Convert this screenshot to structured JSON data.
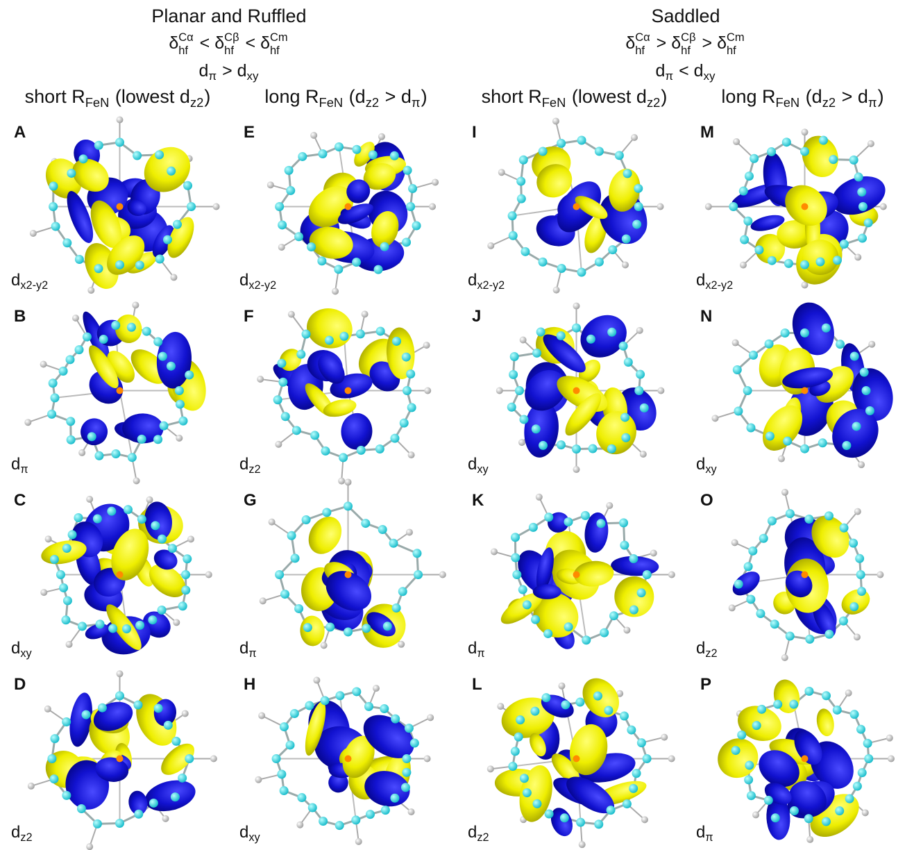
{
  "groups": [
    {
      "title": "Planar and Ruffled",
      "shift_order": [
        {
          "base": "δ",
          "sub": "hf",
          "sup": "Cα"
        },
        " < ",
        {
          "base": "δ",
          "sub": "hf",
          "sup": "Cβ"
        },
        " < ",
        {
          "base": "δ",
          "sub": "hf",
          "sup": "Cm"
        }
      ],
      "orbital_order": [
        {
          "base": "d",
          "sub": "π"
        },
        " > ",
        {
          "base": "d",
          "sub": "xy"
        }
      ],
      "columns": [
        {
          "header": [
            {
              "base": "short R",
              "sub": "FeN"
            },
            " (lowest ",
            {
              "base": "d",
              "sub": "z2"
            },
            ")"
          ],
          "panels": [
            {
              "letter": "A",
              "orbital": {
                "base": "d",
                "sub": "x2-y2"
              }
            },
            {
              "letter": "B",
              "orbital": {
                "base": "d",
                "sub": "π"
              }
            },
            {
              "letter": "C",
              "orbital": {
                "base": "d",
                "sub": "xy"
              }
            },
            {
              "letter": "D",
              "orbital": {
                "base": "d",
                "sub": "z2"
              }
            }
          ]
        },
        {
          "header": [
            {
              "base": "long R",
              "sub": "FeN"
            },
            " (",
            {
              "base": "d",
              "sub": "z2"
            },
            " > ",
            {
              "base": "d",
              "sub": "π"
            },
            ")"
          ],
          "panels": [
            {
              "letter": "E",
              "orbital": {
                "base": "d",
                "sub": "x2-y2"
              }
            },
            {
              "letter": "F",
              "orbital": {
                "base": "d",
                "sub": "z2"
              }
            },
            {
              "letter": "G",
              "orbital": {
                "base": "d",
                "sub": "π"
              }
            },
            {
              "letter": "H",
              "orbital": {
                "base": "d",
                "sub": "xy"
              }
            }
          ]
        }
      ]
    },
    {
      "title": "Saddled",
      "shift_order": [
        {
          "base": "δ",
          "sub": "hf",
          "sup": "Cα"
        },
        " > ",
        {
          "base": "δ",
          "sub": "hf",
          "sup": "Cβ"
        },
        " > ",
        {
          "base": "δ",
          "sub": "hf",
          "sup": "Cm"
        }
      ],
      "orbital_order": [
        {
          "base": "d",
          "sub": "π"
        },
        " < ",
        {
          "base": "d",
          "sub": "xy"
        }
      ],
      "columns": [
        {
          "header": [
            {
              "base": "short R",
              "sub": "FeN"
            },
            " (lowest ",
            {
              "base": "d",
              "sub": "z2"
            },
            ")"
          ],
          "panels": [
            {
              "letter": "I",
              "orbital": {
                "base": "d",
                "sub": "x2-y2"
              }
            },
            {
              "letter": "J",
              "orbital": {
                "base": "d",
                "sub": "xy"
              }
            },
            {
              "letter": "K",
              "orbital": {
                "base": "d",
                "sub": "π"
              }
            },
            {
              "letter": "L",
              "orbital": {
                "base": "d",
                "sub": "z2"
              }
            }
          ]
        },
        {
          "header": [
            {
              "base": "long R",
              "sub": "FeN"
            },
            " (",
            {
              "base": "d",
              "sub": "z2"
            },
            " > ",
            {
              "base": "d",
              "sub": "π"
            },
            ")"
          ],
          "panels": [
            {
              "letter": "M",
              "orbital": {
                "base": "d",
                "sub": "x2-y2"
              }
            },
            {
              "letter": "N",
              "orbital": {
                "base": "d",
                "sub": "xy"
              }
            },
            {
              "letter": "O",
              "orbital": {
                "base": "d",
                "sub": "z2"
              }
            },
            {
              "letter": "P",
              "orbital": {
                "base": "d",
                "sub": "π"
              }
            }
          ]
        }
      ]
    }
  ]
}
